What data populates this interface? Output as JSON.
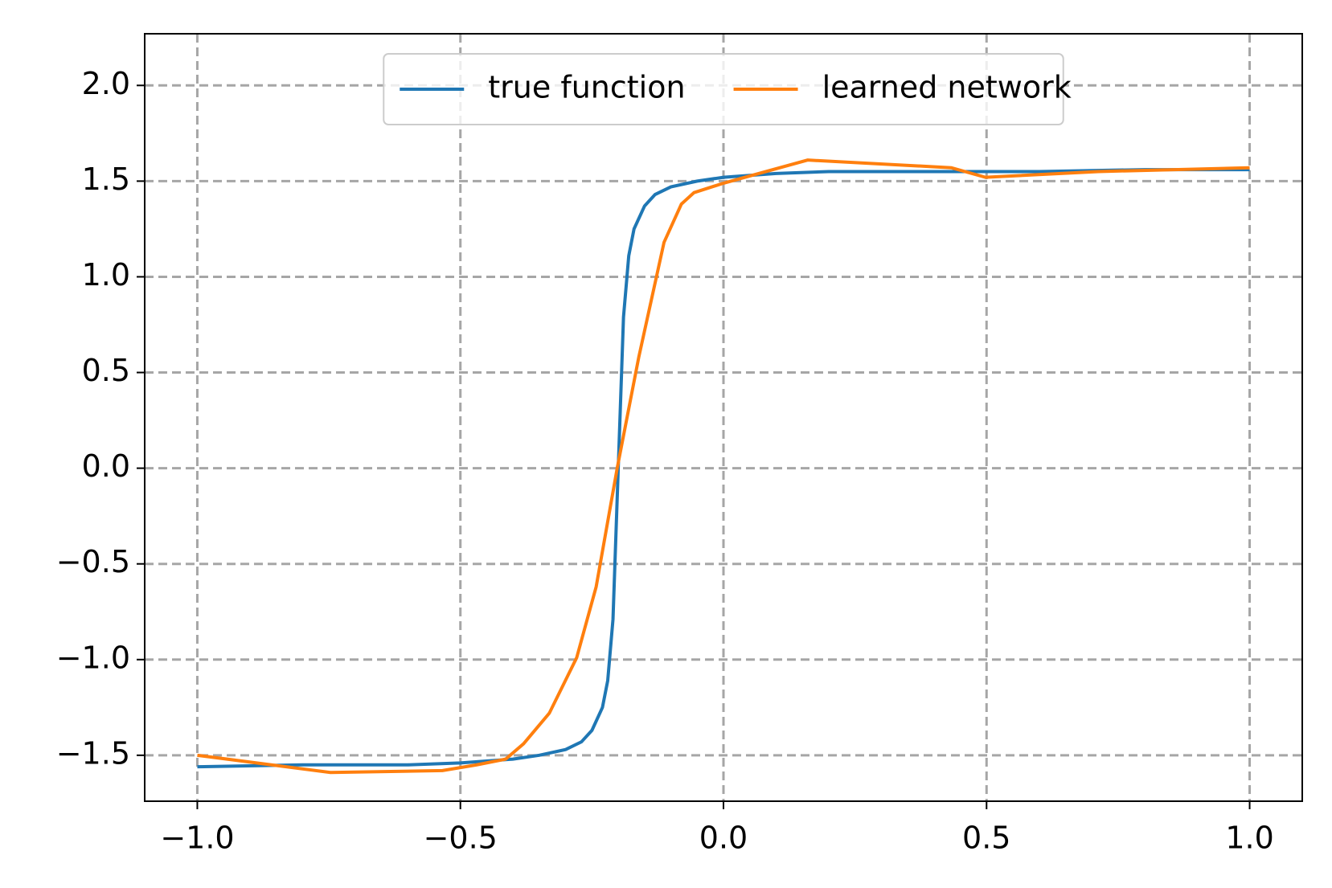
{
  "chart_data": {
    "type": "line",
    "xlim": [
      -1.1,
      1.1
    ],
    "ylim": [
      -1.74,
      2.27
    ],
    "xticks": [
      {
        "value": -1,
        "label": "−1.0"
      },
      {
        "value": -0.5,
        "label": "−0.5"
      },
      {
        "value": 0,
        "label": "0.0"
      },
      0.5,
      {
        "value": 1,
        "label": "1.0"
      }
    ],
    "yticks": [
      {
        "value": -1.5,
        "label": "−1.5"
      },
      {
        "value": -1,
        "label": "−1.0"
      },
      {
        "value": -0.5,
        "label": "−0.5"
      },
      {
        "value": 0,
        "label": "0.0"
      },
      0.5,
      {
        "value": 1,
        "label": "1.0"
      },
      1.5,
      {
        "value": 2,
        "label": "2.0"
      }
    ],
    "grid": true,
    "legend": "top-center",
    "series": [
      {
        "name": "true function",
        "color": "#1f77b4",
        "x": [
          -1,
          -0.8,
          -0.6,
          -0.5,
          -0.4,
          -0.35,
          -0.3,
          -0.27,
          -0.25,
          -0.23,
          -0.22,
          -0.21,
          -0.2,
          -0.19,
          -0.18,
          -0.17,
          -0.15,
          -0.13,
          -0.1,
          -0.05,
          0,
          0.1,
          0.2,
          0.4,
          0.6,
          0.8,
          1.0
        ],
        "values": [
          -1.56,
          -1.55,
          -1.55,
          -1.54,
          -1.52,
          -1.5,
          -1.47,
          -1.43,
          -1.37,
          -1.25,
          -1.11,
          -0.79,
          0,
          0.79,
          1.11,
          1.25,
          1.37,
          1.43,
          1.47,
          1.5,
          1.52,
          1.54,
          1.55,
          1.55,
          1.55,
          1.56,
          1.56
        ]
      },
      {
        "name": "learned network",
        "color": "#ff7f0e",
        "x": [
          -1,
          -0.747,
          -0.534,
          -0.469,
          -0.414,
          -0.38,
          -0.331,
          -0.279,
          -0.242,
          -0.202,
          -0.161,
          -0.113,
          -0.08,
          -0.056,
          0.001,
          0.16,
          0.433,
          0.498,
          0.713,
          1.0
        ],
        "values": [
          -1.5,
          -1.59,
          -1.58,
          -1.55,
          -1.52,
          -1.44,
          -1.28,
          -0.99,
          -0.62,
          0,
          0.58,
          1.18,
          1.38,
          1.44,
          1.49,
          1.61,
          1.57,
          1.52,
          1.55,
          1.57
        ]
      }
    ]
  }
}
